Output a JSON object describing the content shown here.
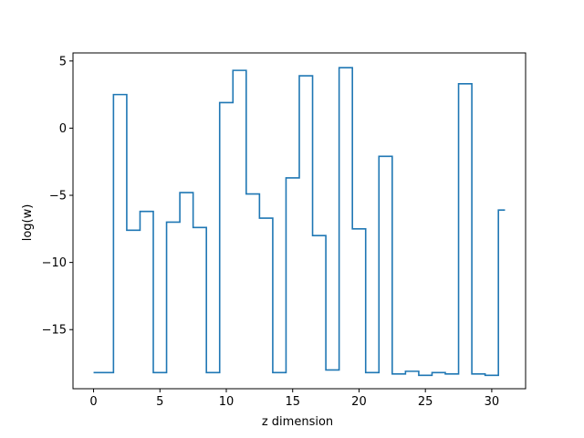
{
  "chart_data": {
    "type": "line",
    "step": "mid",
    "title": "",
    "xlabel": "z dimension",
    "ylabel": "log(w)",
    "xlim": [
      -1.55,
      32.55
    ],
    "ylim": [
      -19.4,
      5.6
    ],
    "xticks": [
      0,
      5,
      10,
      15,
      20,
      25,
      30
    ],
    "yticks": [
      5,
      0,
      -5,
      -10,
      -15
    ],
    "ytick_labels": [
      "5",
      "0",
      "−5",
      "−10",
      "−15"
    ],
    "grid": false,
    "color": "#1f77b4",
    "x": [
      0,
      1,
      2,
      3,
      4,
      5,
      6,
      7,
      8,
      9,
      10,
      11,
      12,
      13,
      14,
      15,
      16,
      17,
      18,
      19,
      20,
      21,
      22,
      23,
      24,
      25,
      26,
      27,
      28,
      29,
      30,
      31
    ],
    "y": [
      -18.2,
      -18.2,
      2.5,
      -7.6,
      -6.2,
      -18.2,
      -7.0,
      -4.8,
      -7.4,
      -18.2,
      1.9,
      4.3,
      -4.9,
      -6.7,
      -18.2,
      -3.7,
      3.9,
      -8.0,
      -18.0,
      4.5,
      -7.5,
      -18.2,
      -2.1,
      -18.3,
      -18.1,
      -18.4,
      -18.2,
      -18.3,
      3.3,
      -18.3,
      -18.4,
      -6.1
    ]
  }
}
